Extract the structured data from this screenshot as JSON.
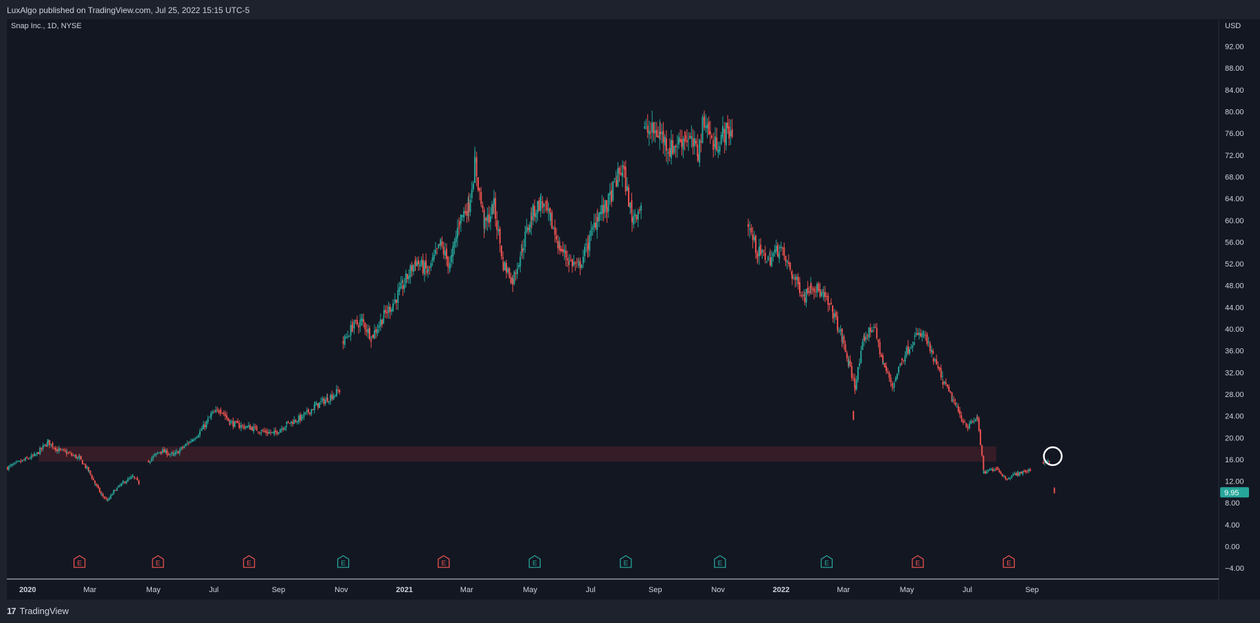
{
  "header": {
    "published_text": "LuxAlgo published on TradingView.com, Jul 25, 2022 15:15 UTC-5"
  },
  "footer": {
    "logo_text": "TradingView",
    "logo_mark": "17"
  },
  "colors": {
    "up": "#26a69a",
    "down": "#ef5350",
    "zone": "#3a1d27",
    "bg": "#131722",
    "text": "#d1d4dc",
    "earn_up": "#26a69a",
    "earn_down": "#ef5350",
    "price_tag": "#26a69a"
  },
  "chart_data": {
    "type": "candlestick",
    "title": "Snap Inc., 1D, NYSE",
    "currency": "USD",
    "ylim": [
      -6,
      97
    ],
    "y_ticks": [
      "92.00",
      "88.00",
      "84.00",
      "80.00",
      "76.00",
      "72.00",
      "68.00",
      "64.00",
      "60.00",
      "56.00",
      "52.00",
      "48.00",
      "44.00",
      "40.00",
      "36.00",
      "32.00",
      "28.00",
      "24.00",
      "20.00",
      "16.00",
      "12.00",
      "8.00",
      "4.00",
      "0.00",
      "−4.00"
    ],
    "x_ticks": [
      {
        "label": "2020",
        "bold": true,
        "month": 0
      },
      {
        "label": "Mar",
        "bold": false,
        "month": 2
      },
      {
        "label": "May",
        "bold": false,
        "month": 4
      },
      {
        "label": "Jul",
        "bold": false,
        "month": 6
      },
      {
        "label": "Sep",
        "bold": false,
        "month": 8
      },
      {
        "label": "Nov",
        "bold": false,
        "month": 10
      },
      {
        "label": "2021",
        "bold": true,
        "month": 12
      },
      {
        "label": "Mar",
        "bold": false,
        "month": 14
      },
      {
        "label": "May",
        "bold": false,
        "month": 16
      },
      {
        "label": "Jul",
        "bold": false,
        "month": 18
      },
      {
        "label": "Sep",
        "bold": false,
        "month": 20
      },
      {
        "label": "Nov",
        "bold": false,
        "month": 22
      },
      {
        "label": "2022",
        "bold": true,
        "month": 24
      },
      {
        "label": "Mar",
        "bold": false,
        "month": 26
      },
      {
        "label": "May",
        "bold": false,
        "month": 28
      },
      {
        "label": "Jul",
        "bold": false,
        "month": 30
      },
      {
        "label": "Sep",
        "bold": false,
        "month": 32
      }
    ],
    "last_price": 9.95,
    "last_price_label": "9.95",
    "zone": {
      "low": 15.6,
      "high": 18.4,
      "from_month": 0.4,
      "to_month": 30.9
    },
    "price_path": [
      [
        -0.6,
        14.5
      ],
      [
        0.3,
        16.8
      ],
      [
        0.7,
        19.2
      ],
      [
        1.0,
        17.8
      ],
      [
        1.3,
        17.2
      ],
      [
        1.7,
        16.2
      ],
      [
        2.0,
        13.8
      ],
      [
        2.2,
        11.5
      ],
      [
        2.4,
        9.5
      ],
      [
        2.6,
        8.4
      ],
      [
        2.8,
        10.2
      ],
      [
        3.1,
        11.8
      ],
      [
        3.4,
        12.8
      ],
      [
        3.6,
        11.6
      ],
      [
        3.9,
        15.8
      ],
      [
        4.3,
        17.6
      ],
      [
        4.7,
        16.8
      ],
      [
        5.2,
        19.2
      ],
      [
        5.6,
        21.5
      ],
      [
        5.9,
        24.2
      ],
      [
        6.2,
        25.2
      ],
      [
        6.5,
        22.8
      ],
      [
        6.8,
        22.2
      ],
      [
        7.2,
        21.8
      ],
      [
        7.5,
        21.2
      ],
      [
        7.9,
        20.8
      ],
      [
        8.3,
        22.5
      ],
      [
        8.8,
        23.8
      ],
      [
        9.2,
        25.8
      ],
      [
        9.6,
        27.2
      ],
      [
        10.0,
        28.8
      ],
      [
        10.1,
        37.5
      ],
      [
        10.4,
        40.5
      ],
      [
        10.7,
        41.5
      ],
      [
        11.0,
        38.5
      ],
      [
        11.4,
        42.5
      ],
      [
        11.7,
        44.8
      ],
      [
        12.0,
        48.0
      ],
      [
        12.4,
        52.5
      ],
      [
        12.8,
        50.5
      ],
      [
        13.2,
        55.5
      ],
      [
        13.5,
        51.5
      ],
      [
        13.8,
        60.0
      ],
      [
        14.1,
        63.0
      ],
      [
        14.3,
        70.5
      ],
      [
        14.6,
        59.0
      ],
      [
        14.9,
        62.5
      ],
      [
        15.2,
        52.0
      ],
      [
        15.5,
        49.0
      ],
      [
        15.8,
        55.0
      ],
      [
        16.1,
        61.0
      ],
      [
        16.4,
        63.5
      ],
      [
        16.7,
        60.0
      ],
      [
        17.0,
        55.0
      ],
      [
        17.3,
        52.5
      ],
      [
        17.6,
        51.5
      ],
      [
        17.9,
        55.5
      ],
      [
        18.2,
        61.0
      ],
      [
        18.5,
        62.5
      ],
      [
        18.8,
        67.5
      ],
      [
        19.0,
        69.5
      ],
      [
        19.3,
        60.5
      ],
      [
        19.6,
        63.0
      ],
      [
        19.7,
        76.5
      ],
      [
        20.2,
        76.0
      ],
      [
        20.5,
        73.0
      ],
      [
        21.0,
        75.5
      ],
      [
        21.4,
        72.5
      ],
      [
        21.6,
        79.0
      ],
      [
        21.9,
        73.5
      ],
      [
        22.2,
        76.0
      ],
      [
        22.5,
        76.5
      ],
      [
        23.0,
        59.0
      ],
      [
        23.3,
        54.0
      ],
      [
        23.7,
        53.0
      ],
      [
        24.0,
        55.0
      ],
      [
        24.4,
        50.0
      ],
      [
        24.8,
        46.0
      ],
      [
        25.0,
        48.5
      ],
      [
        25.4,
        46.0
      ],
      [
        25.7,
        43.0
      ],
      [
        26.0,
        38.0
      ],
      [
        26.2,
        33.5
      ],
      [
        26.4,
        29.5
      ],
      [
        26.7,
        38.5
      ],
      [
        27.0,
        40.5
      ],
      [
        27.3,
        33.5
      ],
      [
        27.6,
        29.5
      ],
      [
        27.9,
        34.5
      ],
      [
        28.3,
        38.5
      ],
      [
        28.6,
        39.0
      ],
      [
        28.9,
        34.5
      ],
      [
        29.2,
        30.5
      ],
      [
        29.5,
        27.0
      ],
      [
        29.8,
        23.5
      ],
      [
        30.0,
        22.0
      ],
      [
        30.3,
        23.8
      ],
      [
        30.5,
        13.5
      ],
      [
        30.9,
        14.5
      ],
      [
        31.2,
        12.5
      ],
      [
        31.6,
        13.5
      ],
      [
        32.0,
        14.0
      ],
      [
        32.4,
        15.5
      ],
      [
        32.6,
        16.0
      ]
    ],
    "gaps_after": [
      13,
      30,
      62,
      71,
      101
    ],
    "outlier_candles": [
      [
        26.35,
        25.0,
        23.2
      ],
      [
        32.75,
        10.9,
        9.7
      ]
    ],
    "earnings": [
      {
        "month": 1.7,
        "type": "down",
        "label": "E"
      },
      {
        "month": 4.2,
        "type": "down",
        "label": "E"
      },
      {
        "month": 7.1,
        "type": "down",
        "label": "E"
      },
      {
        "month": 10.1,
        "type": "up",
        "label": "E"
      },
      {
        "month": 13.3,
        "type": "down",
        "label": "E"
      },
      {
        "month": 16.2,
        "type": "up",
        "label": "E"
      },
      {
        "month": 19.1,
        "type": "up",
        "label": "E"
      },
      {
        "month": 22.1,
        "type": "up",
        "label": "E"
      },
      {
        "month": 25.5,
        "type": "up",
        "label": "E"
      },
      {
        "month": 28.4,
        "type": "down",
        "label": "E"
      },
      {
        "month": 31.3,
        "type": "down",
        "label": "E"
      }
    ],
    "annotation_circle": {
      "month": 32.7,
      "price": 16.6
    }
  }
}
